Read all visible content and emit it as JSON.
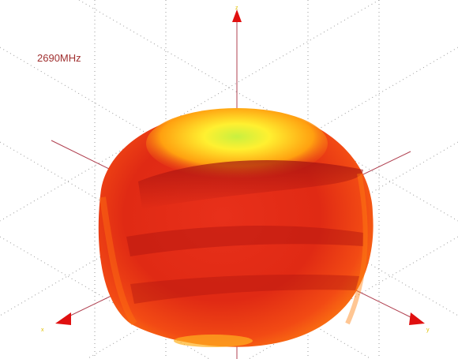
{
  "label": "2690MHz"
}
